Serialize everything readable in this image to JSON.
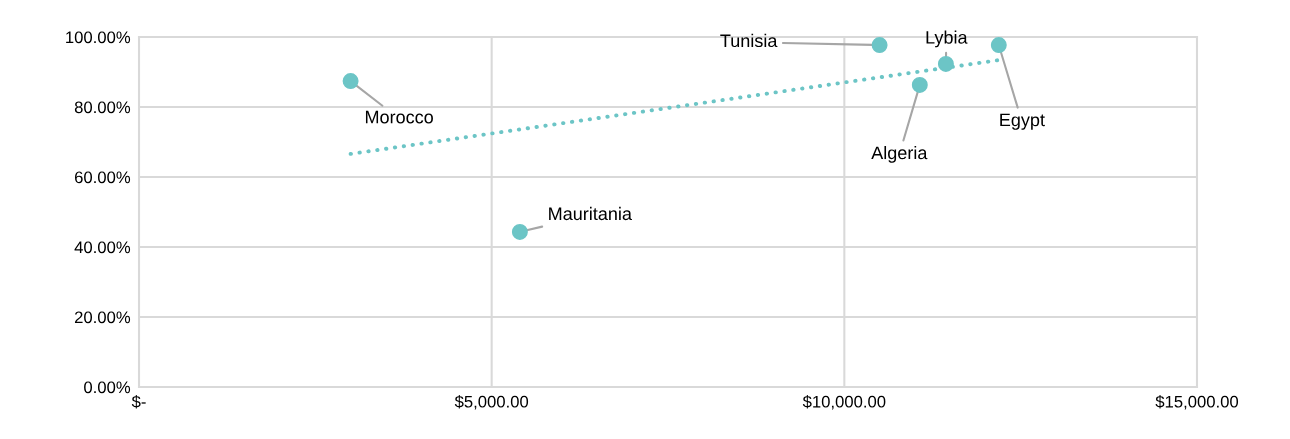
{
  "chart_data": {
    "type": "scatter",
    "xlim": [
      0,
      15000
    ],
    "ylim": [
      0,
      100
    ],
    "xticks": [
      {
        "value": 0,
        "label": "$-"
      },
      {
        "value": 5000,
        "label": "$5,000.00"
      },
      {
        "value": 10000,
        "label": "$10,000.00"
      },
      {
        "value": 15000,
        "label": "$15,000.00"
      }
    ],
    "yticks": [
      {
        "value": 0,
        "label": "0.00%"
      },
      {
        "value": 20,
        "label": "20.00%"
      },
      {
        "value": 40,
        "label": "40.00%"
      },
      {
        "value": 60,
        "label": "60.00%"
      },
      {
        "value": 80,
        "label": "80.00%"
      },
      {
        "value": 100,
        "label": "100.00%"
      }
    ],
    "grid": true,
    "series": [
      {
        "marker": "circle",
        "color": "#6cc5c6",
        "x": [
          3000,
          5400,
          10500,
          11070,
          11440,
          12190
        ],
        "values": [
          87.4,
          44.3,
          97.7,
          86.3,
          92.3,
          97.7
        ]
      },
      {
        "type": "line",
        "color": "#6cc5c6",
        "line_style": "dotted",
        "x": [
          3000,
          12190
        ],
        "values": [
          66.6,
          93.4
        ]
      }
    ],
    "annotations": [
      {
        "text": "Morocco",
        "x": 3000,
        "y": 87.4
      },
      {
        "text": "Mauritania",
        "x": 5400,
        "y": 44.3
      },
      {
        "text": "Tunisia",
        "x": 10500,
        "y": 97.7
      },
      {
        "text": "Algeria",
        "x": 11070,
        "y": 86.3
      },
      {
        "text": "Lybia",
        "x": 11440,
        "y": 92.3
      },
      {
        "text": "Egypt",
        "x": 12190,
        "y": 97.7
      }
    ]
  }
}
